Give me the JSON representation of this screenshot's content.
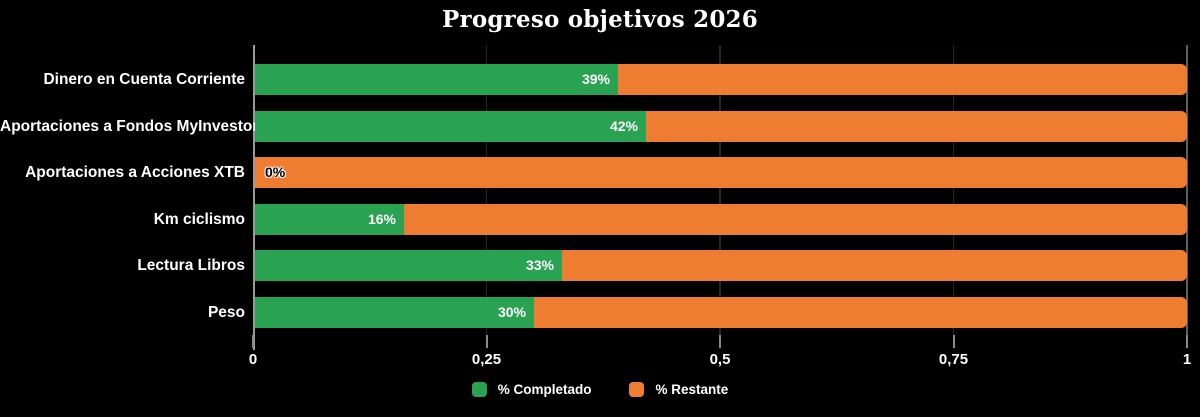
{
  "title": "Progreso objetivos 2026",
  "colors": {
    "background": "#000000",
    "completed": "#29A352",
    "remaining": "#EE7D32",
    "text": "#FFFFFF",
    "axis_line": "#9A9A9A",
    "inner_gridline": "#272727",
    "end_gridline": "#5F5F5F"
  },
  "chart_data": {
    "type": "bar",
    "orientation": "horizontal",
    "stacked": true,
    "title": "Progreso objetivos 2026",
    "categories": [
      "Dinero en Cuenta Corriente",
      "Aportaciones a Fondos MyInvestor",
      "Aportaciones a Acciones XTB",
      "Km ciclismo",
      "Lectura Libros",
      "Peso"
    ],
    "series": [
      {
        "name": "% Completado",
        "color": "#29A352",
        "values": [
          0.39,
          0.42,
          0.0,
          0.16,
          0.33,
          0.3
        ]
      },
      {
        "name": "% Restante",
        "color": "#EE7D32",
        "values": [
          0.61,
          0.58,
          1.0,
          0.84,
          0.67,
          0.7
        ]
      }
    ],
    "bar_value_labels": [
      "39%",
      "42%",
      "0%",
      "16%",
      "33%",
      "30%"
    ],
    "xlim": [
      0,
      1
    ],
    "x_tick_values": [
      0,
      0.25,
      0.5,
      0.75,
      1
    ],
    "x_tick_labels": [
      "0",
      "0,25",
      "0,5",
      "0,75",
      "1"
    ],
    "grid": "vertical",
    "legend_position": "bottom",
    "legend": [
      {
        "label": "% Completado",
        "color": "#29A352"
      },
      {
        "label": "% Restante",
        "color": "#EE7D32"
      }
    ]
  }
}
